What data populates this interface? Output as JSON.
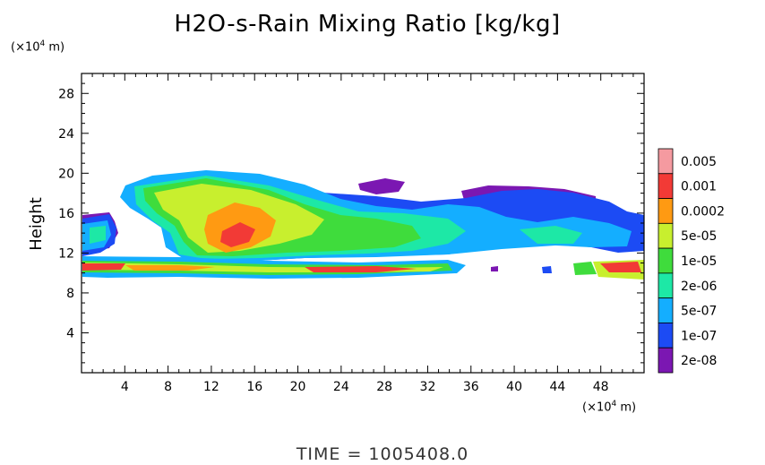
{
  "chart_data": {
    "type": "heatmap",
    "title": "H2O-s-Rain Mixing Ratio [kg/kg]",
    "ylabel": "Height",
    "x_unit": "(×10⁴ m)",
    "y_unit": "(×10⁴ m)",
    "xlim": [
      0,
      52
    ],
    "ylim": [
      0,
      30
    ],
    "x_ticks": [
      4,
      8,
      12,
      16,
      20,
      24,
      28,
      32,
      36,
      40,
      44,
      48
    ],
    "y_ticks": [
      4,
      8,
      12,
      16,
      20,
      24,
      28
    ],
    "colorbar": {
      "labels": [
        "0.005",
        "0.001",
        "0.0002",
        "5e-05",
        "1e-05",
        "2e-06",
        "5e-07",
        "1e-07",
        "2e-08"
      ],
      "colors": [
        "#f59aa0",
        "#f23a36",
        "#ff9a12",
        "#c8ef2e",
        "#3fdc3c",
        "#1de8a6",
        "#14aeff",
        "#1c4bf4",
        "#7b17b2"
      ]
    },
    "footer": "TIME  =  1005408.0"
  }
}
